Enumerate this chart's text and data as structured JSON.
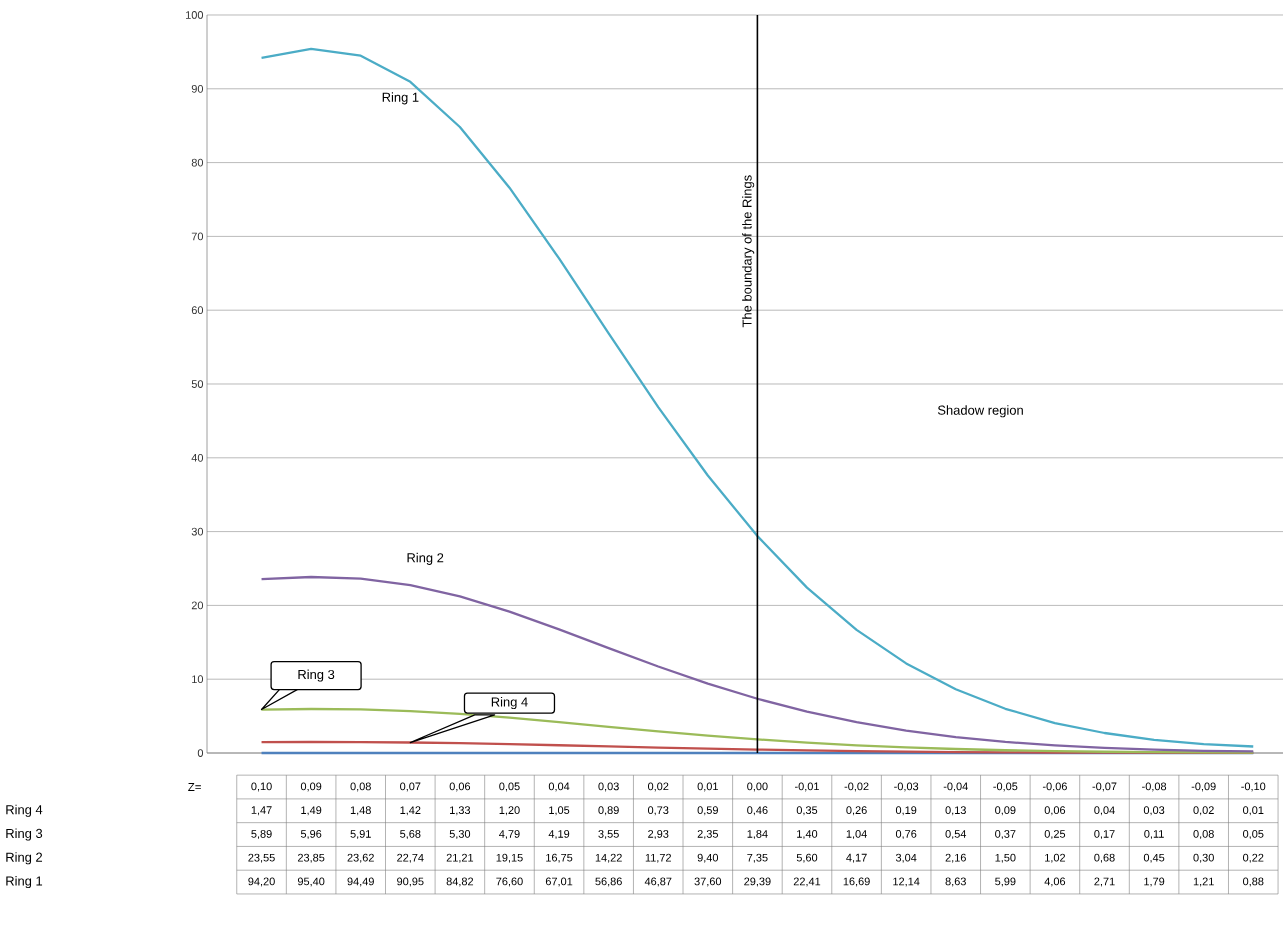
{
  "chart_data": {
    "type": "line",
    "xlabel": "Z=",
    "categories": [
      "0,10",
      "0,09",
      "0,08",
      "0,07",
      "0,06",
      "0,05",
      "0,04",
      "0,03",
      "0,02",
      "0,01",
      "0,00",
      "-0,01",
      "-0,02",
      "-0,03",
      "-0,04",
      "-0,05",
      "-0,06",
      "-0,07",
      "-0,08",
      "-0,09",
      "-0,10"
    ],
    "ylim": [
      0,
      100
    ],
    "yticks": [
      0,
      10,
      20,
      30,
      40,
      50,
      60,
      70,
      80,
      90,
      100
    ],
    "grid": "y",
    "marker": "none",
    "line_style": "solid",
    "series": [
      {
        "color": "#4f81bd",
        "values": [
          0,
          0,
          0,
          0,
          0,
          0,
          0,
          0,
          0,
          0,
          0,
          0,
          0,
          0,
          0,
          0,
          0,
          0,
          0,
          0,
          0
        ]
      },
      {
        "name": "Ring  4",
        "color": "#c0504d",
        "values": [
          1.47,
          1.49,
          1.48,
          1.42,
          1.33,
          1.2,
          1.05,
          0.89,
          0.73,
          0.59,
          0.46,
          0.35,
          0.26,
          0.19,
          0.13,
          0.09,
          0.06,
          0.04,
          0.03,
          0.02,
          0.01
        ],
        "value_labels": [
          "1,47",
          "1,49",
          "1,48",
          "1,42",
          "1,33",
          "1,20",
          "1,05",
          "0,89",
          "0,73",
          "0,59",
          "0,46",
          "0,35",
          "0,26",
          "0,19",
          "0,13",
          "0,09",
          "0,06",
          "0,04",
          "0,03",
          "0,02",
          "0,01"
        ]
      },
      {
        "name": "Ring  3",
        "color": "#9bbb59",
        "values": [
          5.89,
          5.96,
          5.91,
          5.68,
          5.3,
          4.79,
          4.19,
          3.55,
          2.93,
          2.35,
          1.84,
          1.4,
          1.04,
          0.76,
          0.54,
          0.37,
          0.25,
          0.17,
          0.11,
          0.08,
          0.05
        ],
        "value_labels": [
          "5,89",
          "5,96",
          "5,91",
          "5,68",
          "5,30",
          "4,79",
          "4,19",
          "3,55",
          "2,93",
          "2,35",
          "1,84",
          "1,40",
          "1,04",
          "0,76",
          "0,54",
          "0,37",
          "0,25",
          "0,17",
          "0,11",
          "0,08",
          "0,05"
        ]
      },
      {
        "name": "Ring  2",
        "color": "#8064a2",
        "values": [
          23.55,
          23.85,
          23.62,
          22.74,
          21.21,
          19.15,
          16.75,
          14.22,
          11.72,
          9.4,
          7.35,
          5.6,
          4.17,
          3.04,
          2.16,
          1.5,
          1.02,
          0.68,
          0.45,
          0.3,
          0.22
        ],
        "value_labels": [
          "23,55",
          "23,85",
          "23,62",
          "22,74",
          "21,21",
          "19,15",
          "16,75",
          "14,22",
          "11,72",
          "9,40",
          "7,35",
          "5,60",
          "4,17",
          "3,04",
          "2,16",
          "1,50",
          "1,02",
          "0,68",
          "0,45",
          "0,30",
          "0,22"
        ]
      },
      {
        "name": "Ring  1",
        "color": "#4bacc6",
        "values": [
          94.2,
          95.4,
          94.49,
          90.95,
          84.82,
          76.6,
          67.01,
          56.86,
          46.87,
          37.6,
          29.39,
          22.41,
          16.69,
          12.14,
          8.63,
          5.99,
          4.06,
          2.71,
          1.79,
          1.21,
          0.88
        ],
        "value_labels": [
          "94,20",
          "95,40",
          "94,49",
          "90,95",
          "84,82",
          "76,60",
          "67,01",
          "56,86",
          "46,87",
          "37,60",
          "29,39",
          "22,41",
          "16,69",
          "12,14",
          "8,63",
          "5,99",
          "4,06",
          "2,71",
          "1,79",
          "1,21",
          "0,88"
        ]
      }
    ],
    "ref_lines": [
      {
        "axis": "x",
        "value": "0,00",
        "label": "The boundary of the Rings",
        "color": "#000000"
      }
    ],
    "annotations": [
      "Shadow region"
    ]
  }
}
